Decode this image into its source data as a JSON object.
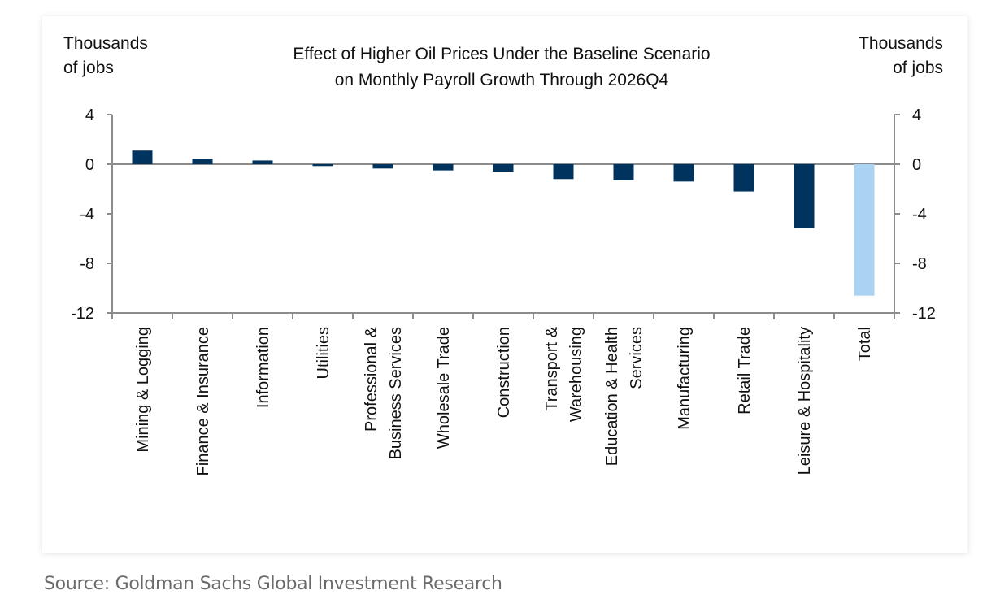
{
  "chart_data": {
    "type": "bar",
    "title": [
      "Effect of Higher Oil Prices Under the Baseline Scenario",
      "on Monthly Payroll Growth Through 2026Q4"
    ],
    "ylabel_left": [
      "Thousands",
      "of jobs"
    ],
    "ylabel_right": [
      "Thousands",
      "of jobs"
    ],
    "ylim": [
      -12,
      4
    ],
    "yticks": [
      4,
      0,
      -4,
      -8,
      -12
    ],
    "grid": false,
    "categories": [
      [
        "Mining & Logging"
      ],
      [
        "Finance & Insurance"
      ],
      [
        "Information"
      ],
      [
        "Utilities"
      ],
      [
        "Professional &",
        "Business Services"
      ],
      [
        "Wholesale Trade"
      ],
      [
        "Construction"
      ],
      [
        "Transport &",
        "Warehousing"
      ],
      [
        "Education & Health",
        "Services"
      ],
      [
        "Manufacturing"
      ],
      [
        "Retail Trade"
      ],
      [
        "Leisure & Hospitality"
      ],
      [
        "Total"
      ]
    ],
    "values": [
      1.1,
      0.45,
      0.3,
      -0.15,
      -0.35,
      -0.5,
      -0.6,
      -1.2,
      -1.3,
      -1.4,
      -2.2,
      -5.15,
      -10.6
    ],
    "colors": {
      "sector": "#00335e",
      "total": "#a9d3f0",
      "axis": "#8c8c8c"
    }
  },
  "source": "Source: Goldman Sachs Global Investment Research"
}
